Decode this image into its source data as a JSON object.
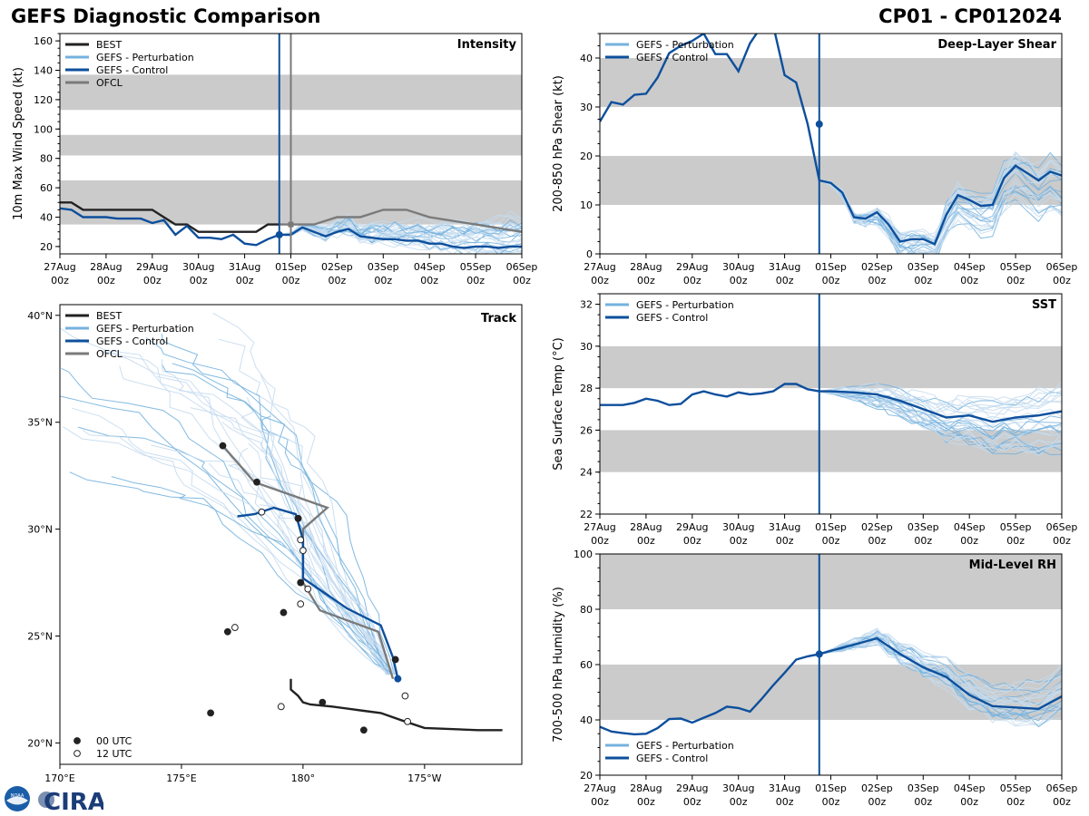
{
  "header": {
    "title": "GEFS Diagnostic Comparison",
    "storm_id": "CP01 - CP012024"
  },
  "colors": {
    "best": "#222222",
    "perturbation": "#74b2de",
    "control": "#0d4f9c",
    "ofcl": "#7a7a7a",
    "band": "#cbcbcb",
    "now_line": "#0d4f9c"
  },
  "logos": {
    "noaa": "NOAA",
    "cira": "CIRA"
  },
  "time_axis": {
    "ticks": [
      "27Aug\n00z",
      "28Aug\n00z",
      "29Aug\n00z",
      "30Aug\n00z",
      "31Aug\n00z",
      "01Sep\n00z",
      "02Sep\n00z",
      "03Sep\n00z",
      "04Sep\n00z",
      "05Sep\n00z",
      "06Sep\n00z"
    ],
    "range_days": [
      0,
      10
    ],
    "now_day": 4.75
  },
  "chart_data": [
    {
      "id": "intensity",
      "type": "line",
      "title": "Intensity",
      "ylabel": "10m Max Wind Speed (kt)",
      "ylim": [
        15,
        165
      ],
      "yticks": [
        20,
        40,
        60,
        80,
        100,
        120,
        140,
        160
      ],
      "bands": [
        [
          35,
          65
        ],
        [
          82,
          96
        ],
        [
          113,
          137
        ]
      ],
      "legend": [
        "BEST",
        "GEFS - Perturbation",
        "GEFS - Control",
        "OFCL"
      ],
      "ofcl_start_day": 5.0,
      "series": [
        {
          "name": "BEST",
          "x": [
            0,
            0.25,
            0.5,
            0.75,
            1,
            1.25,
            1.5,
            1.75,
            2,
            2.25,
            2.5,
            2.75,
            3,
            3.25,
            3.5,
            3.75,
            4,
            4.25,
            4.5,
            4.75
          ],
          "values": [
            50,
            50,
            45,
            45,
            45,
            45,
            45,
            45,
            45,
            40,
            35,
            35,
            30,
            30,
            30,
            30,
            30,
            30,
            35,
            35
          ]
        },
        {
          "name": "OFCL",
          "x": [
            4.75,
            5,
            5.5,
            6,
            6.5,
            7,
            7.5,
            8,
            9,
            10
          ],
          "values": [
            35,
            35,
            35,
            40,
            40,
            45,
            45,
            40,
            35,
            30
          ]
        },
        {
          "name": "GEFS - Control",
          "x": [
            0,
            0.25,
            0.5,
            0.75,
            1,
            1.25,
            1.5,
            1.75,
            2,
            2.25,
            2.5,
            2.75,
            3,
            3.25,
            3.5,
            3.75,
            4,
            4.25,
            4.5,
            4.75,
            5,
            5.25,
            5.5,
            5.75,
            6,
            6.25,
            6.5,
            6.75,
            7,
            7.25,
            7.5,
            7.75,
            8,
            8.25,
            8.5,
            8.75,
            9,
            9.25,
            9.5,
            9.75,
            10
          ],
          "values": [
            46,
            45,
            40,
            40,
            40,
            39,
            39,
            39,
            36,
            38,
            28,
            34,
            26,
            26,
            25,
            28,
            22,
            21,
            25,
            28,
            28,
            33,
            30,
            27,
            30,
            32,
            27,
            26,
            25,
            25,
            24,
            24,
            22,
            22,
            20,
            19,
            20,
            20,
            19,
            20,
            20
          ]
        }
      ],
      "perturbation_spread": {
        "start_day": 4.75,
        "start_value": 28,
        "end_range": [
          14,
          46
        ]
      },
      "now_marker_value": 28
    },
    {
      "id": "shear",
      "type": "line",
      "title": "Deep-Layer Shear",
      "ylabel": "200-850 hPa Shear (kt)",
      "ylim": [
        0,
        45
      ],
      "yticks": [
        0,
        10,
        20,
        30,
        40
      ],
      "bands": [
        [
          10,
          20
        ],
        [
          30,
          40
        ]
      ],
      "legend": [
        "GEFS - Perturbation",
        "GEFS - Control"
      ],
      "series": [
        {
          "name": "GEFS - Control",
          "x": [
            0,
            0.25,
            0.5,
            0.75,
            1,
            1.25,
            1.5,
            1.75,
            2,
            2.25,
            2.5,
            2.75,
            3,
            3.25,
            3.5,
            3.75,
            4,
            4.25,
            4.5,
            4.75,
            5,
            5.25,
            5.5,
            5.75,
            6,
            6.25,
            6.5,
            6.75,
            7,
            7.25,
            7.5,
            7.75,
            8,
            8.25,
            8.5,
            8.75,
            9,
            9.25,
            9.5,
            9.75,
            10
          ],
          "values": [
            27,
            31,
            30.5,
            32.5,
            32.7,
            36,
            41,
            42.5,
            43.5,
            45,
            40.8,
            40.8,
            37.3,
            43,
            46.5,
            46.8,
            36.5,
            35,
            26.5,
            15,
            14.5,
            12.5,
            7.5,
            7.2,
            8.5,
            6,
            2.5,
            3,
            3,
            2,
            8,
            12,
            11,
            9.8,
            10,
            15.5,
            18,
            16.5,
            15,
            16.8,
            16
          ]
        }
      ],
      "perturbation_spread": {
        "start_day": 4.75,
        "start_value": 26.5,
        "end_range": [
          2,
          20
        ]
      },
      "now_marker_value": 26.5
    },
    {
      "id": "track",
      "type": "scatter",
      "title": "Track",
      "xlim_lon": [
        170,
        189
      ],
      "ylim_lat": [
        19,
        40.5
      ],
      "xticks": [
        "170°E",
        "175°E",
        "180°",
        "175°W",
        "170°W"
      ],
      "yticks": [
        "20°N",
        "25°N",
        "30°N",
        "35°N",
        "40°N"
      ],
      "legend": [
        "BEST",
        "GEFS - Perturbation",
        "GEFS - Control",
        "OFCL"
      ],
      "marker_legend": [
        "00 UTC",
        "12 UTC"
      ],
      "best_track": [
        [
          188.2,
          20.6
        ],
        [
          187.2,
          20.6
        ],
        [
          185.0,
          20.7
        ],
        [
          184.2,
          21.0
        ],
        [
          183.2,
          21.4
        ],
        [
          182.5,
          21.5
        ],
        [
          181.2,
          21.7
        ],
        [
          180.3,
          21.8
        ],
        [
          180.0,
          21.9
        ],
        [
          179.8,
          22.2
        ],
        [
          179.5,
          22.5
        ],
        [
          179.5,
          23.0
        ]
      ],
      "best_markers_00": [
        [
          182.5,
          20.6
        ],
        [
          176.2,
          21.4
        ],
        [
          180.8,
          21.9
        ],
        [
          183.8,
          23.9
        ]
      ],
      "best_markers_12": [
        [
          184.3,
          21.0
        ],
        [
          179.1,
          21.7
        ],
        [
          184.2,
          22.2
        ]
      ],
      "ofcl_track": [
        [
          183.7,
          23.0
        ],
        [
          183.1,
          25.2
        ],
        [
          180.7,
          26.2
        ],
        [
          180.0,
          27.5
        ],
        [
          180.0,
          30.0
        ],
        [
          181.0,
          31.0
        ],
        [
          178.0,
          32.2
        ],
        [
          176.7,
          33.9
        ]
      ],
      "ofcl_markers_00": [
        [
          176.7,
          33.9
        ],
        [
          178.1,
          32.2
        ],
        [
          179.8,
          30.5
        ],
        [
          179.9,
          27.5
        ],
        [
          179.2,
          26.1
        ],
        [
          176.9,
          25.2
        ]
      ],
      "ofcl_markers_12": [
        [
          178.3,
          30.8
        ],
        [
          179.9,
          29.5
        ],
        [
          180.0,
          29.0
        ],
        [
          180.2,
          27.2
        ],
        [
          179.9,
          26.5
        ],
        [
          177.2,
          25.4
        ]
      ],
      "control_track": [
        [
          183.9,
          23.0
        ],
        [
          183.7,
          24.0
        ],
        [
          183.2,
          25.5
        ],
        [
          181.8,
          26.3
        ],
        [
          180.9,
          27.0
        ],
        [
          180.0,
          27.7
        ],
        [
          180.0,
          29.5
        ],
        [
          179.7,
          30.7
        ],
        [
          178.8,
          31.0
        ],
        [
          178.0,
          30.7
        ],
        [
          177.3,
          30.6
        ]
      ]
    },
    {
      "id": "sst",
      "type": "line",
      "title": "SST",
      "ylabel": "Sea Surface Temp (°C)",
      "ylim": [
        22,
        32.5
      ],
      "yticks": [
        22,
        24,
        26,
        28,
        30,
        32
      ],
      "bands": [
        [
          24,
          26
        ],
        [
          28,
          30
        ]
      ],
      "legend": [
        "GEFS - Perturbation",
        "GEFS - Control"
      ],
      "series": [
        {
          "name": "GEFS - Control",
          "x": [
            0,
            0.25,
            0.5,
            0.75,
            1,
            1.25,
            1.5,
            1.75,
            2,
            2.25,
            2.5,
            2.75,
            3,
            3.25,
            3.5,
            3.75,
            4,
            4.25,
            4.5,
            4.75,
            5,
            5.5,
            6,
            6.5,
            7,
            7.5,
            8,
            8.5,
            9,
            9.5,
            10
          ],
          "values": [
            27.2,
            27.2,
            27.2,
            27.3,
            27.5,
            27.4,
            27.2,
            27.25,
            27.7,
            27.85,
            27.7,
            27.6,
            27.8,
            27.7,
            27.75,
            27.85,
            28.2,
            28.2,
            27.95,
            27.85,
            27.85,
            27.8,
            27.7,
            27.4,
            27.0,
            26.6,
            26.7,
            26.4,
            26.6,
            26.7,
            26.9
          ]
        }
      ],
      "perturbation_spread": {
        "start_day": 4.75,
        "start_value": 27.85,
        "end_range": [
          24.5,
          28.5
        ]
      }
    },
    {
      "id": "rh",
      "type": "line",
      "title": "Mid-Level RH",
      "ylabel": "700-500 hPa Humidity (%)",
      "ylim": [
        20,
        100
      ],
      "yticks": [
        20,
        40,
        60,
        80,
        100
      ],
      "bands": [
        [
          40,
          60
        ],
        [
          80,
          100
        ]
      ],
      "legend": [
        "GEFS - Perturbation",
        "GEFS - Control"
      ],
      "series": [
        {
          "name": "GEFS - Control",
          "x": [
            0,
            0.25,
            0.5,
            0.75,
            1,
            1.25,
            1.5,
            1.75,
            2,
            2.25,
            2.5,
            2.75,
            3,
            3.25,
            3.5,
            3.75,
            4,
            4.25,
            4.5,
            4.75,
            5,
            5.5,
            6,
            6.5,
            7,
            7.5,
            8,
            8.5,
            9,
            9.5,
            10
          ],
          "values": [
            37.5,
            35.8,
            35.2,
            34.8,
            35,
            37,
            40.3,
            40.5,
            39,
            40.8,
            42.5,
            44.8,
            44.3,
            43,
            47.5,
            52.5,
            57,
            61.8,
            63,
            63.8,
            65,
            67.2,
            69.5,
            63.8,
            59,
            55.5,
            49,
            45,
            44.5,
            44,
            48.5
          ]
        }
      ],
      "perturbation_spread": {
        "start_day": 4.75,
        "start_value": 63.8,
        "end_range": [
          41,
          62
        ]
      },
      "now_marker_value": 63.8
    }
  ]
}
